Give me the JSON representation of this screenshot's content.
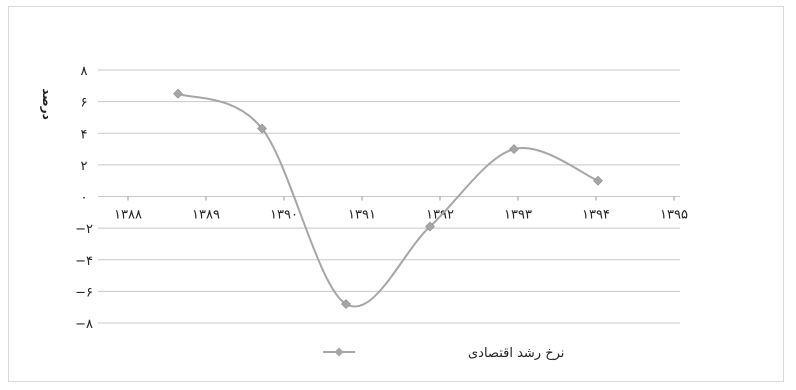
{
  "chart_data": {
    "type": "line",
    "title": "",
    "xlabel": "",
    "ylabel": "درصد",
    "ylim": [
      -8,
      8
    ],
    "y_ticks": [
      {
        "value": 8,
        "label": "۸"
      },
      {
        "value": 6,
        "label": "۶"
      },
      {
        "value": 4,
        "label": "۴"
      },
      {
        "value": 2,
        "label": "۲"
      },
      {
        "value": 0,
        "label": "۰"
      },
      {
        "value": -2,
        "label": "−۲"
      },
      {
        "value": -4,
        "label": "−۴"
      },
      {
        "value": -6,
        "label": "−۶"
      },
      {
        "value": -8,
        "label": "−۸"
      }
    ],
    "x_ticks": [
      "۱۳۸۸",
      "۱۳۸۹",
      "۱۳۹۰",
      "۱۳۹۱",
      "۱۳۹۲",
      "۱۳۹۳",
      "۱۳۹۴",
      "۱۳۹۵"
    ],
    "x": [
      1389,
      1390,
      1391,
      1392,
      1393,
      1394
    ],
    "grid": true,
    "legend_position": "bottom",
    "smooth": true,
    "series": [
      {
        "name": "نرخ رشد اقتصادی",
        "color": "#a6a6a6",
        "marker": "diamond",
        "values": [
          6.5,
          4.3,
          -6.8,
          -1.9,
          3.0,
          1.0
        ]
      }
    ]
  }
}
